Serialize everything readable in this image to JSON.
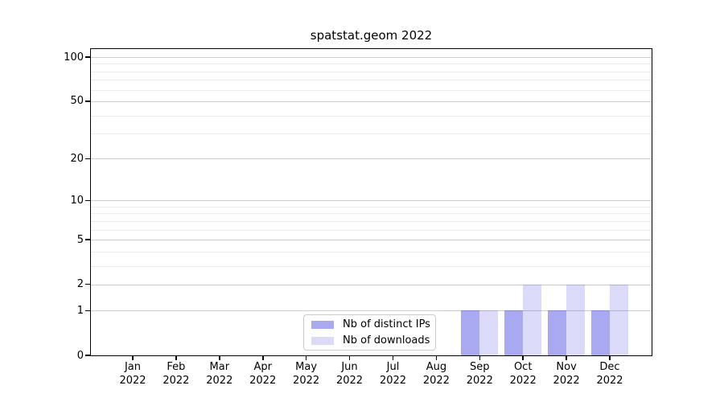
{
  "chart_data": {
    "type": "bar",
    "title": "spatstat.geom 2022",
    "x_year": "2022",
    "categories": [
      "Jan",
      "Feb",
      "Mar",
      "Apr",
      "May",
      "Jun",
      "Jul",
      "Aug",
      "Sep",
      "Oct",
      "Nov",
      "Dec"
    ],
    "series": [
      {
        "name": "Nb of distinct IPs",
        "color": "rgba(30,30,220,0.38)",
        "solid_color": "#a8a8f0",
        "values": [
          0,
          0,
          0,
          0,
          0,
          0,
          0,
          0,
          1,
          1,
          1,
          1
        ]
      },
      {
        "name": "Nb of downloads",
        "color": "rgba(30,30,220,0.16)",
        "solid_color": "#dcdcf8",
        "values": [
          0,
          0,
          0,
          0,
          0,
          0,
          0,
          0,
          1,
          2,
          2,
          2
        ]
      }
    ],
    "y_scale": "log1p",
    "y_ticks": [
      0,
      1,
      2,
      5,
      10,
      20,
      50,
      100
    ],
    "y_minor_ticks": [
      3,
      4,
      6,
      7,
      8,
      9,
      30,
      40,
      60,
      70,
      80,
      90
    ],
    "ylim": [
      0,
      113.4
    ],
    "xlabel": "",
    "ylabel": "",
    "grid": true,
    "legend_position": "inside lower-center-left",
    "colors": {
      "grid_major": "#cdcdcd",
      "grid_minor": "#ececec",
      "axis": "#000000",
      "background": "#ffffff"
    }
  }
}
